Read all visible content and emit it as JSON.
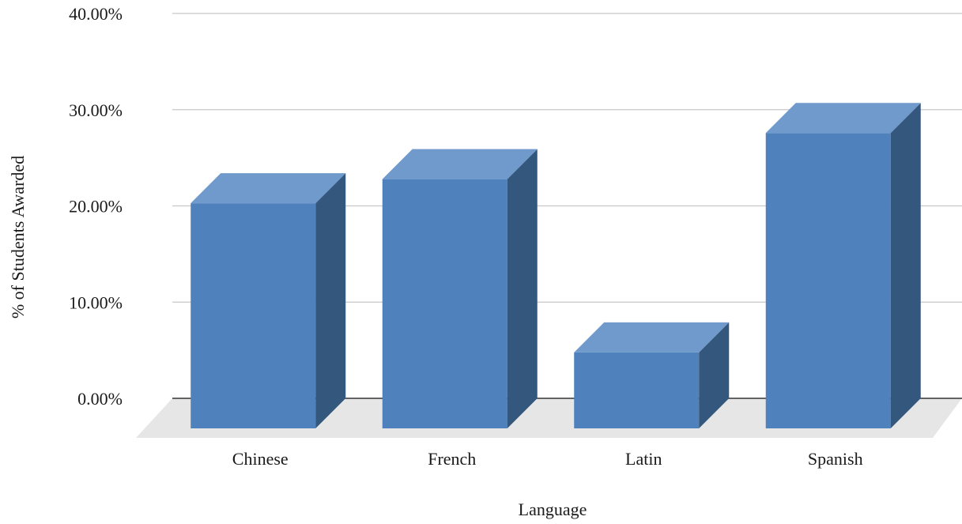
{
  "chart_data": {
    "type": "bar",
    "style": "3d",
    "title": "",
    "xlabel": "Language",
    "ylabel": "% of Students Awarded",
    "categories": [
      "Chinese",
      "French",
      "Latin",
      "Spanish"
    ],
    "values": [
      23.4,
      25.9,
      7.9,
      30.7
    ],
    "ylim": [
      0,
      40
    ],
    "yticks": [
      0,
      10,
      20,
      30,
      40
    ],
    "ytick_labels": [
      "0.00%",
      "10.00%",
      "20.00%",
      "30.00%",
      "40.00%"
    ],
    "grid": true,
    "legend": "none",
    "colors": {
      "bar_front": "#4f81bd",
      "bar_top": "#7099cc",
      "bar_side": "#34577d",
      "floor": "#e6e6e6",
      "grid": "#c8c8c8",
      "zero_line": "#333333"
    }
  }
}
